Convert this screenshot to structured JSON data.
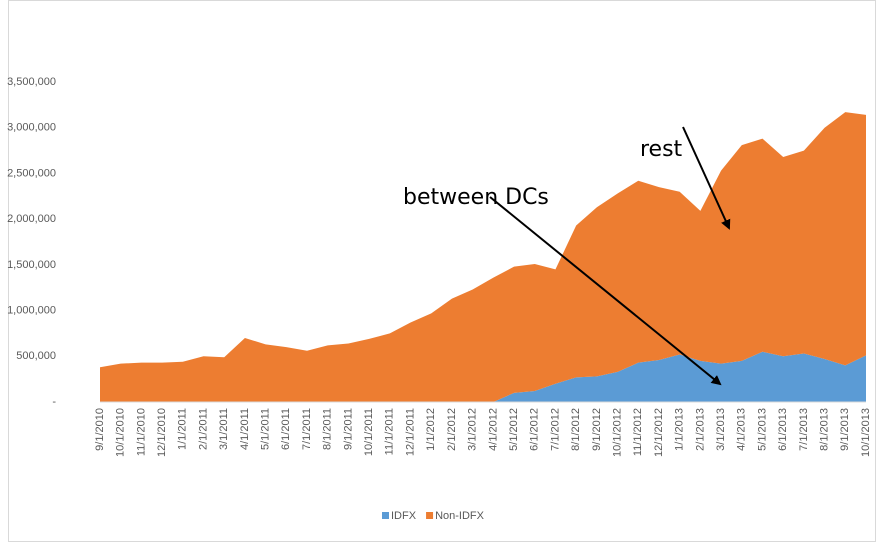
{
  "chart_data": {
    "type": "stacked_area",
    "categories": [
      "9/1/2010",
      "10/1/2010",
      "11/1/2010",
      "12/1/2010",
      "1/1/2011",
      "2/1/2011",
      "3/1/2011",
      "4/1/2011",
      "5/1/2011",
      "6/1/2011",
      "7/1/2011",
      "8/1/2011",
      "9/1/2011",
      "10/1/2011",
      "11/1/2011",
      "12/1/2011",
      "1/1/2012",
      "2/1/2012",
      "3/1/2012",
      "4/1/2012",
      "5/1/2012",
      "6/1/2012",
      "7/1/2012",
      "8/1/2012",
      "9/1/2012",
      "10/1/2012",
      "11/1/2012",
      "12/1/2012",
      "1/1/2013",
      "2/1/2013",
      "3/1/2013",
      "4/1/2013",
      "5/1/2013",
      "6/1/2013",
      "7/1/2013",
      "8/1/2013",
      "9/1/2013",
      "10/1/2013"
    ],
    "series": [
      {
        "name": "IDFX",
        "color": "#5b9bd5",
        "values": [
          0,
          0,
          0,
          0,
          0,
          0,
          0,
          0,
          0,
          0,
          0,
          0,
          0,
          0,
          0,
          0,
          0,
          0,
          0,
          0,
          100000,
          120000,
          200000,
          270000,
          280000,
          330000,
          430000,
          460000,
          520000,
          450000,
          420000,
          450000,
          550000,
          500000,
          530000,
          470000,
          400000,
          510000
        ]
      },
      {
        "name": "Non-IDFX",
        "color": "#ed7d31",
        "values": [
          380000,
          420000,
          430000,
          430000,
          440000,
          500000,
          490000,
          700000,
          630000,
          600000,
          560000,
          620000,
          640000,
          690000,
          750000,
          870000,
          970000,
          1130000,
          1230000,
          1360000,
          1380000,
          1390000,
          1250000,
          1660000,
          1850000,
          1950000,
          1990000,
          1890000,
          1780000,
          1640000,
          2110000,
          2360000,
          2330000,
          2180000,
          2220000,
          2530000,
          2770000,
          2630000
        ]
      }
    ],
    "ylim": [
      0,
      3500000
    ],
    "yticks": [
      {
        "value": 0,
        "label": "-"
      },
      {
        "value": 500000,
        "label": "500,000"
      },
      {
        "value": 1000000,
        "label": "1,000,000"
      },
      {
        "value": 1500000,
        "label": "1,500,000"
      },
      {
        "value": 2000000,
        "label": "2,000,000"
      },
      {
        "value": 2500000,
        "label": "2,500,000"
      },
      {
        "value": 3000000,
        "label": "3,000,000"
      },
      {
        "value": 3500000,
        "label": "3,500,000"
      }
    ],
    "annotations": [
      "rest",
      "between DCs"
    ],
    "legend": "bottom"
  }
}
